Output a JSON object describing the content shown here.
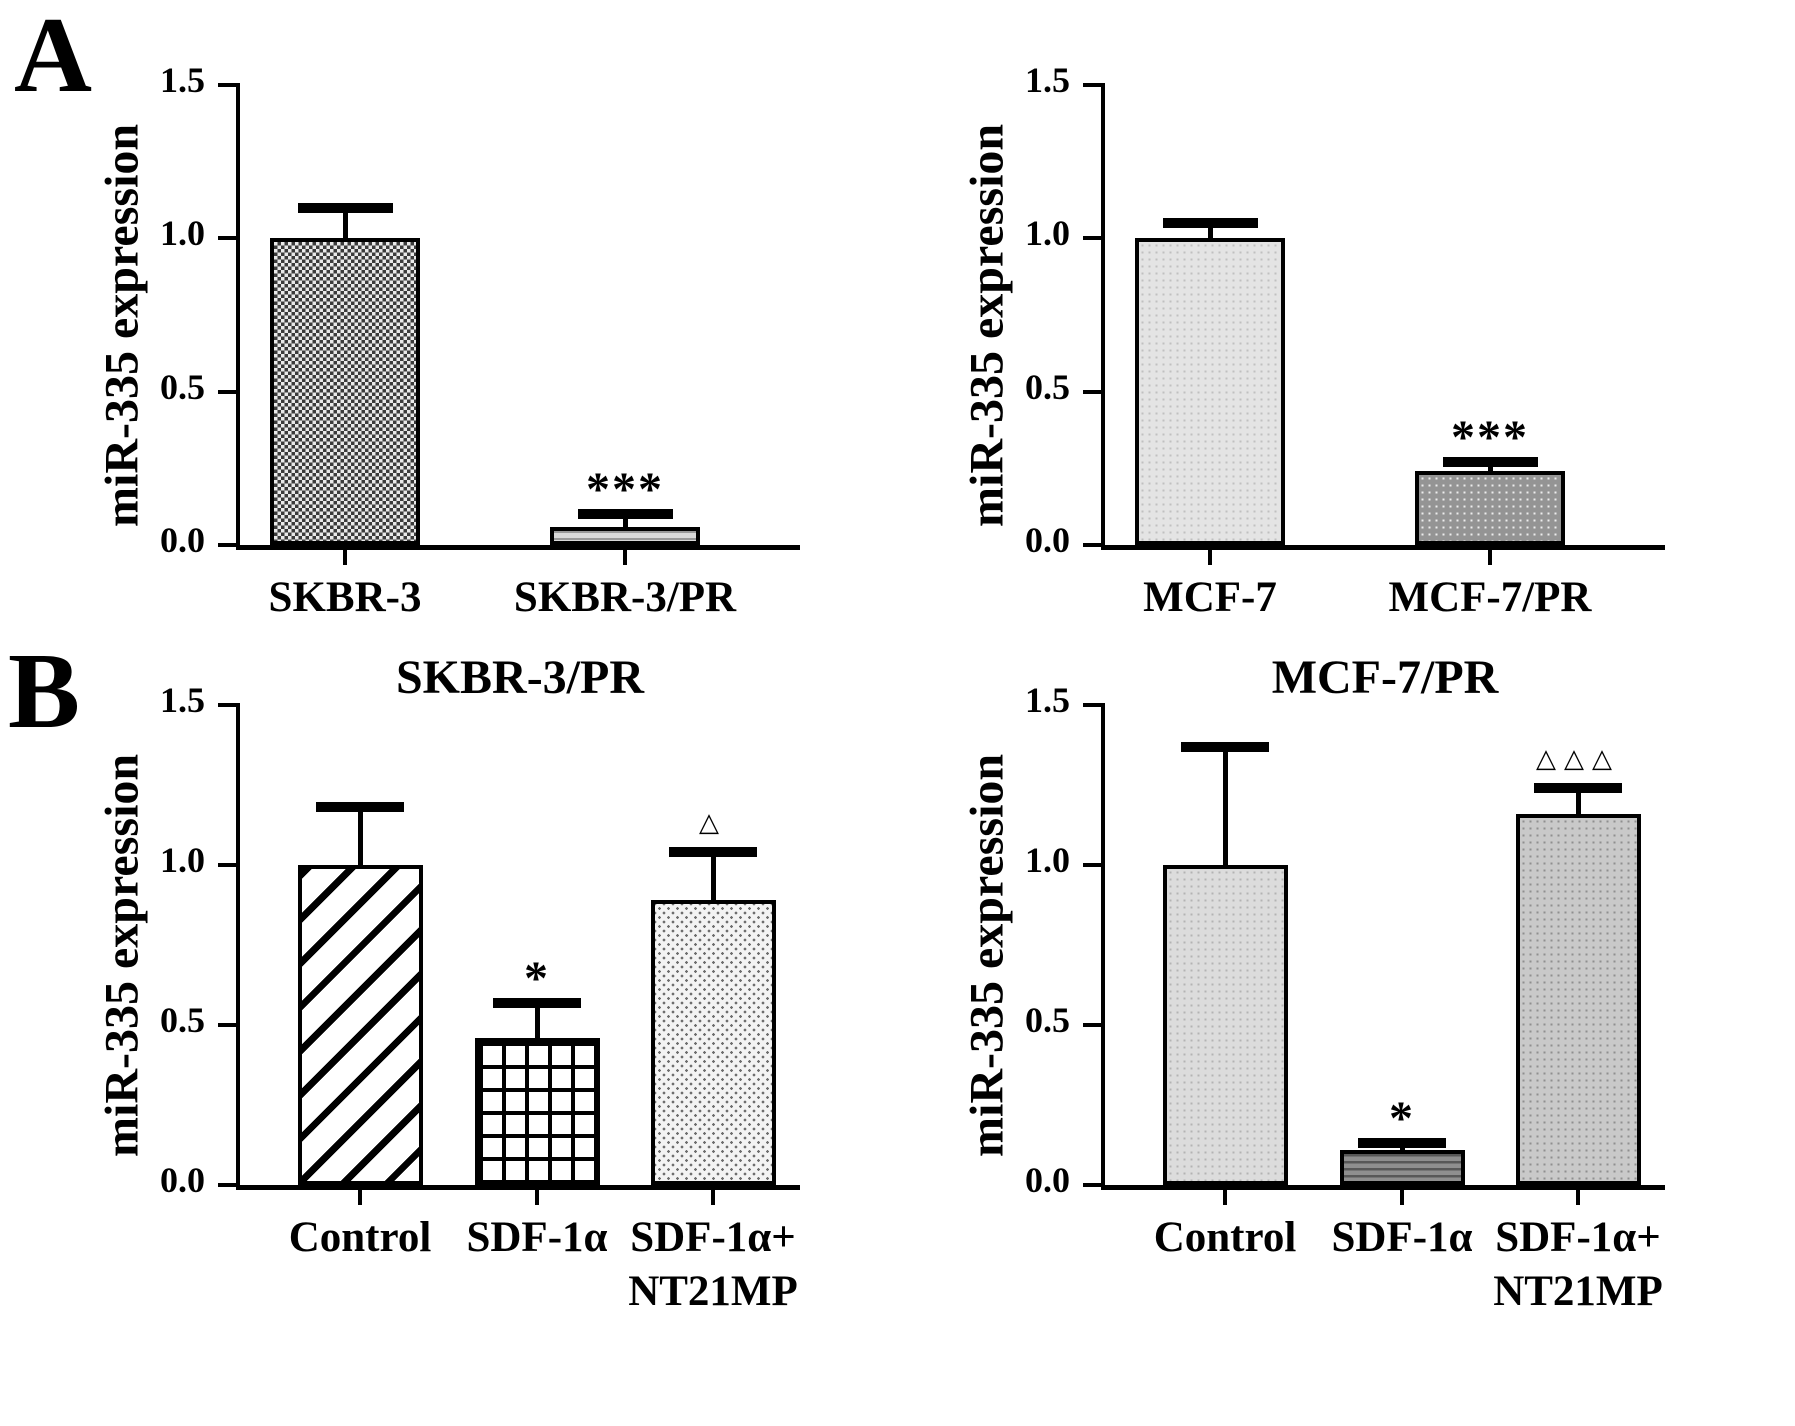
{
  "figure": {
    "panels": [
      {
        "letter": "A"
      },
      {
        "letter": "B"
      }
    ]
  },
  "chart_data": [
    {
      "type": "bar",
      "panel": "A",
      "position": "left",
      "title": "",
      "ylabel": "miR-335 expression",
      "xlabel": "",
      "ylim": [
        0,
        1.5
      ],
      "yticks": [
        0,
        0.5,
        1,
        1.5
      ],
      "ytick_labels": [
        "0.0",
        "0.5",
        "1.0",
        "1.5"
      ],
      "grid": false,
      "legend": "none",
      "categories": [
        "SKBR-3",
        "SKBR-3/PR"
      ],
      "values": [
        1.0,
        0.06
      ],
      "errors_up": [
        0.1,
        0.04
      ],
      "significance": [
        "",
        "***"
      ],
      "patterns": [
        "checker",
        "hlines-light"
      ]
    },
    {
      "type": "bar",
      "panel": "A",
      "position": "right",
      "title": "",
      "ylabel": "miR-335 expression",
      "xlabel": "",
      "ylim": [
        0,
        1.5
      ],
      "yticks": [
        0,
        0.5,
        1,
        1.5
      ],
      "ytick_labels": [
        "0.0",
        "0.5",
        "1.0",
        "1.5"
      ],
      "grid": false,
      "legend": "none",
      "categories": [
        "MCF-7",
        "MCF-7/PR"
      ],
      "values": [
        1.0,
        0.24
      ],
      "errors_up": [
        0.05,
        0.03
      ],
      "significance": [
        "",
        "***"
      ],
      "patterns": [
        "dots-light",
        "dots-dark"
      ]
    },
    {
      "type": "bar",
      "panel": "B",
      "position": "left",
      "title": "SKBR-3/PR",
      "ylabel": "miR-335 expression",
      "xlabel": "",
      "ylim": [
        0,
        1.5
      ],
      "yticks": [
        0,
        0.5,
        1,
        1.5
      ],
      "ytick_labels": [
        "0.0",
        "0.5",
        "1.0",
        "1.5"
      ],
      "grid": false,
      "legend": "none",
      "categories": [
        "Control",
        "SDF-1α",
        "SDF-1α+\nNT21MP"
      ],
      "values": [
        1.0,
        0.46,
        0.89
      ],
      "errors_up": [
        0.18,
        0.11,
        0.15
      ],
      "significance": [
        "",
        "*",
        "△"
      ],
      "patterns": [
        "diag",
        "grid",
        "chevron"
      ]
    },
    {
      "type": "bar",
      "panel": "B",
      "position": "right",
      "title": "MCF-7/PR",
      "ylabel": "miR-335 expression",
      "xlabel": "",
      "ylim": [
        0,
        1.5
      ],
      "yticks": [
        0,
        0.5,
        1,
        1.5
      ],
      "ytick_labels": [
        "0.0",
        "0.5",
        "1.0",
        "1.5"
      ],
      "grid": false,
      "legend": "none",
      "categories": [
        "Control",
        "SDF-1α",
        "SDF-1α+\nNT21MP"
      ],
      "values": [
        1.0,
        0.11,
        1.16
      ],
      "errors_up": [
        0.37,
        0.02,
        0.08
      ],
      "significance": [
        "",
        "*",
        "△△△"
      ],
      "patterns": [
        "stipple-light",
        "hlines-dark",
        "stipple-gray"
      ]
    }
  ]
}
